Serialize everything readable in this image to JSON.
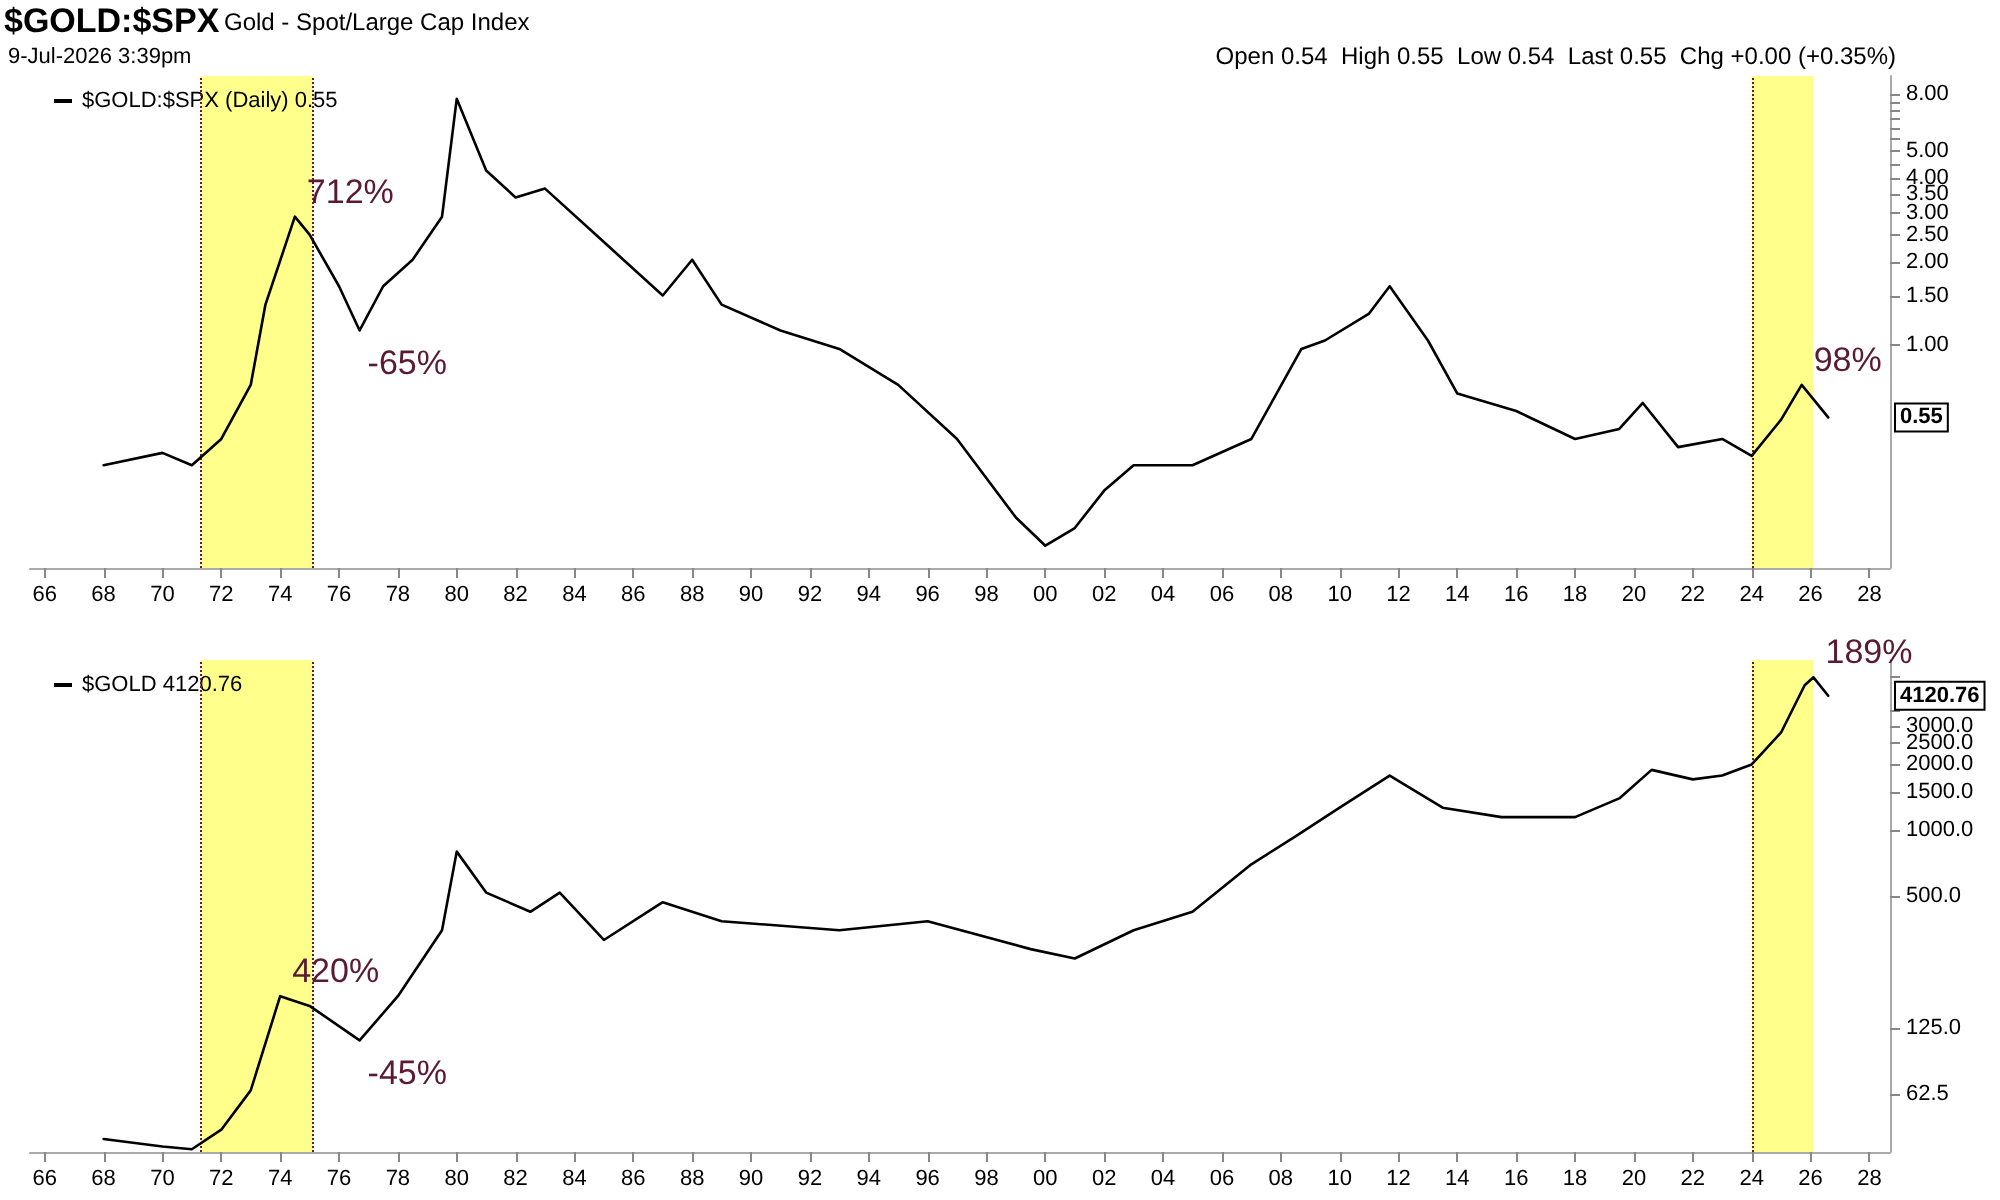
{
  "chart_data": [
    {
      "type": "line",
      "title": "$GOLD:$SPX",
      "subtitle": "Gold - Spot/Large Cap Index",
      "legend": "top left",
      "log": "y",
      "grid": false,
      "annotations": [
        "9-Jul-2026 3:39pm",
        "Open 0.54  High 0.55  Low 0.54  Last 0.55  Chg +0.00 (+0.35%)",
        {
          "text": "712%",
          "x": 1974.5,
          "y": 2.9
        },
        {
          "text": "-65%",
          "x": 1976.7,
          "y": 1.13
        },
        {
          "text": "98%",
          "x": 2025.7,
          "y": 0.72
        },
        "0.55"
      ],
      "xlim": [
        1965.5,
        2028.7
      ],
      "xticks": [
        {
          "value": 1966,
          "label": "66"
        },
        {
          "value": 1968,
          "label": "68"
        },
        {
          "value": 1970,
          "label": "70"
        },
        {
          "value": 1972,
          "label": "72"
        },
        {
          "value": 1974,
          "label": "74"
        },
        {
          "value": 1976,
          "label": "76"
        },
        {
          "value": 1978,
          "label": "78"
        },
        {
          "value": 1980,
          "label": "80"
        },
        {
          "value": 1982,
          "label": "82"
        },
        {
          "value": 1984,
          "label": "84"
        },
        {
          "value": 1986,
          "label": "86"
        },
        {
          "value": 1988,
          "label": "88"
        },
        {
          "value": 1990,
          "label": "90"
        },
        {
          "value": 1992,
          "label": "92"
        },
        {
          "value": 1994,
          "label": "94"
        },
        {
          "value": 1996,
          "label": "96"
        },
        {
          "value": 1998,
          "label": "98"
        },
        {
          "value": 2000,
          "label": "00"
        },
        {
          "value": 2002,
          "label": "02"
        },
        {
          "value": 2004,
          "label": "04"
        },
        {
          "value": 2006,
          "label": "06"
        },
        {
          "value": 2008,
          "label": "08"
        },
        {
          "value": 2010,
          "label": "10"
        },
        {
          "value": 2012,
          "label": "12"
        },
        {
          "value": 2014,
          "label": "14"
        },
        {
          "value": 2016,
          "label": "16"
        },
        {
          "value": 2018,
          "label": "18"
        },
        {
          "value": 2020,
          "label": "20"
        },
        {
          "value": 2022,
          "label": "22"
        },
        {
          "value": 2024,
          "label": "24"
        },
        {
          "value": 2026,
          "label": "26"
        },
        {
          "value": 2028,
          "label": "28"
        }
      ],
      "ylim": [
        0.158,
        9.3
      ],
      "yticks": [
        {
          "value": 1,
          "label": "1.00"
        },
        {
          "value": 1.5,
          "label": "1.50"
        },
        {
          "value": 2,
          "label": "2.00"
        },
        {
          "value": 2.5,
          "label": "2.50"
        },
        {
          "value": 3,
          "label": "3.00"
        },
        {
          "value": 3.5,
          "label": "3.50"
        },
        {
          "value": 4,
          "label": "4.00"
        },
        {
          "value": 4.5,
          "label": null
        },
        {
          "value": 5,
          "label": "5.00"
        },
        {
          "value": 5.5,
          "label": null
        },
        {
          "value": 6,
          "label": null
        },
        {
          "value": 6.5,
          "label": null
        },
        {
          "value": 7,
          "label": null
        },
        {
          "value": 7.5,
          "label": null
        },
        {
          "value": 8,
          "label": "8.00"
        }
      ],
      "ref_lines": [
        {
          "axis": "x",
          "value": 1971.3,
          "color": "#6b1a2a",
          "line_style": "dotted"
        },
        {
          "axis": "x",
          "value": 1975.1,
          "color": "#6b1a2a",
          "line_style": "dotted"
        },
        {
          "axis": "x",
          "value": 2024.0,
          "color": "#6b1a2a",
          "line_style": "dotted"
        }
      ],
      "bands": [
        {
          "axis": "x",
          "from": 1971.3,
          "to": 1975.1,
          "color": "#ffff66"
        },
        {
          "axis": "x",
          "from": 2024.0,
          "to": 2026.1,
          "color": "#ffff66"
        }
      ],
      "series": [
        {
          "name": "$GOLD:$SPX (Daily) 0.55",
          "color": "#000000",
          "x": [
            1968,
            1970,
            1971,
            1972,
            1973,
            1973.5,
            1974.5,
            1975,
            1976,
            1976.7,
            1977.5,
            1978.5,
            1979.5,
            1980,
            1981,
            1982,
            1983,
            1985,
            1987,
            1988,
            1989,
            1991,
            1993,
            1995,
            1997,
            1999,
            2000,
            2001,
            2002,
            2003,
            2005,
            2007,
            2008.7,
            2009.5,
            2011,
            2011.7,
            2013,
            2014,
            2016,
            2018,
            2019.5,
            2020.3,
            2021.5,
            2023,
            2024,
            2025,
            2025.7,
            2026.6
          ],
          "values": [
            0.37,
            0.41,
            0.37,
            0.46,
            0.72,
            1.4,
            2.9,
            2.5,
            1.63,
            1.13,
            1.63,
            2.03,
            2.9,
            7.7,
            4.25,
            3.4,
            3.66,
            2.35,
            1.51,
            2.03,
            1.4,
            1.13,
            0.97,
            0.72,
            0.46,
            0.24,
            0.19,
            0.22,
            0.3,
            0.37,
            0.37,
            0.46,
            0.97,
            1.04,
            1.3,
            1.63,
            1.04,
            0.67,
            0.58,
            0.46,
            0.5,
            0.62,
            0.43,
            0.46,
            0.4,
            0.54,
            0.72,
            0.55
          ]
        }
      ]
    },
    {
      "type": "line",
      "legend": "top left",
      "log": "y",
      "grid": false,
      "annotations": [
        {
          "text": "420%",
          "x": 1974,
          "y": 175
        },
        {
          "text": "-45%",
          "x": 1976.7,
          "y": 110
        },
        {
          "text": "189%",
          "x": 2026.1,
          "y": 5000
        },
        "4120.76"
      ],
      "xlim": [
        1965.5,
        2028.7
      ],
      "xticks": [
        {
          "value": 1966,
          "label": "66"
        },
        {
          "value": 1968,
          "label": "68"
        },
        {
          "value": 1970,
          "label": "70"
        },
        {
          "value": 1972,
          "label": "72"
        },
        {
          "value": 1974,
          "label": "74"
        },
        {
          "value": 1976,
          "label": "76"
        },
        {
          "value": 1978,
          "label": "78"
        },
        {
          "value": 1980,
          "label": "80"
        },
        {
          "value": 1982,
          "label": "82"
        },
        {
          "value": 1984,
          "label": "84"
        },
        {
          "value": 1986,
          "label": "86"
        },
        {
          "value": 1988,
          "label": "88"
        },
        {
          "value": 1990,
          "label": "90"
        },
        {
          "value": 1992,
          "label": "92"
        },
        {
          "value": 1994,
          "label": "94"
        },
        {
          "value": 1996,
          "label": "96"
        },
        {
          "value": 1998,
          "label": "98"
        },
        {
          "value": 2000,
          "label": "00"
        },
        {
          "value": 2002,
          "label": "02"
        },
        {
          "value": 2004,
          "label": "04"
        },
        {
          "value": 2006,
          "label": "06"
        },
        {
          "value": 2008,
          "label": "08"
        },
        {
          "value": 2010,
          "label": "10"
        },
        {
          "value": 2012,
          "label": "12"
        },
        {
          "value": 2014,
          "label": "14"
        },
        {
          "value": 2016,
          "label": "16"
        },
        {
          "value": 2018,
          "label": "18"
        },
        {
          "value": 2020,
          "label": "20"
        },
        {
          "value": 2022,
          "label": "22"
        },
        {
          "value": 2024,
          "label": "24"
        },
        {
          "value": 2026,
          "label": "26"
        },
        {
          "value": 2028,
          "label": "28"
        }
      ],
      "ylim": [
        34,
        6000
      ],
      "yticks": [
        {
          "value": 62.5,
          "label": "62.5"
        },
        {
          "value": 125,
          "label": "125.0"
        },
        {
          "value": 500,
          "label": "500.0"
        },
        {
          "value": 1000,
          "label": "1000.0"
        },
        {
          "value": 1500,
          "label": "1500.0"
        },
        {
          "value": 2000,
          "label": "2000.0"
        },
        {
          "value": 2500,
          "label": "2500.0"
        },
        {
          "value": 3000,
          "label": "3000.0"
        },
        {
          "value": 3500,
          "label": null
        },
        {
          "value": 5000,
          "label": null
        }
      ],
      "ref_lines": [
        {
          "axis": "x",
          "value": 1971.3,
          "color": "#6b1a2a",
          "line_style": "dotted"
        },
        {
          "axis": "x",
          "value": 1975.1,
          "color": "#6b1a2a",
          "line_style": "dotted"
        },
        {
          "axis": "x",
          "value": 2024.0,
          "color": "#6b1a2a",
          "line_style": "dotted"
        }
      ],
      "bands": [
        {
          "axis": "x",
          "from": 1971.3,
          "to": 1975.1,
          "color": "#ffff66"
        },
        {
          "axis": "x",
          "from": 2024.0,
          "to": 2026.1,
          "color": "#ffff66"
        }
      ],
      "series": [
        {
          "name": "$GOLD 4120.76",
          "color": "#000000",
          "x": [
            1968,
            1970,
            1971,
            1972,
            1973,
            1974,
            1975,
            1976.7,
            1978,
            1979.5,
            1980,
            1981,
            1982.5,
            1983.5,
            1985,
            1987,
            1989,
            1993,
            1996,
            1999.5,
            2001,
            2003,
            2005,
            2007,
            2008.5,
            2010,
            2011.7,
            2013.5,
            2015.5,
            2018,
            2019.5,
            2020.6,
            2022,
            2023,
            2024,
            2025,
            2025.8,
            2026.1,
            2026.6
          ],
          "values": [
            39,
            36,
            35,
            43,
            65,
            175,
            158,
            110,
            175,
            350,
            800,
            520,
            425,
            520,
            316,
            470,
            385,
            350,
            385,
            287,
            260,
            350,
            425,
            700,
            940,
            1270,
            1780,
            1270,
            1150,
            1150,
            1400,
            1890,
            1710,
            1780,
            2000,
            2800,
            4600,
            5000,
            4120.76
          ]
        }
      ]
    }
  ]
}
